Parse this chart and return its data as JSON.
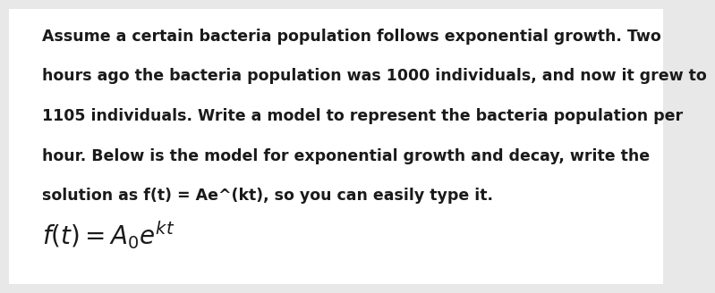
{
  "background_color": "#e8e8e8",
  "card_color": "#ffffff",
  "paragraph": "Assume a certain bacteria population follows exponential growth. Two\nhours ago the bacteria population was 1000 individuals, and now it grew to\n1105 individuals. Write a model to represent the bacteria population per\nhour. Below is the model for exponential growth and decay, write the\nsolution as f(t) = Ae^(kt), so you can easily type it.",
  "paragraph_fontsize": 12.5,
  "formula_fontsize": 20,
  "text_color": "#1a1a1a",
  "font_family": "DejaVu Sans"
}
